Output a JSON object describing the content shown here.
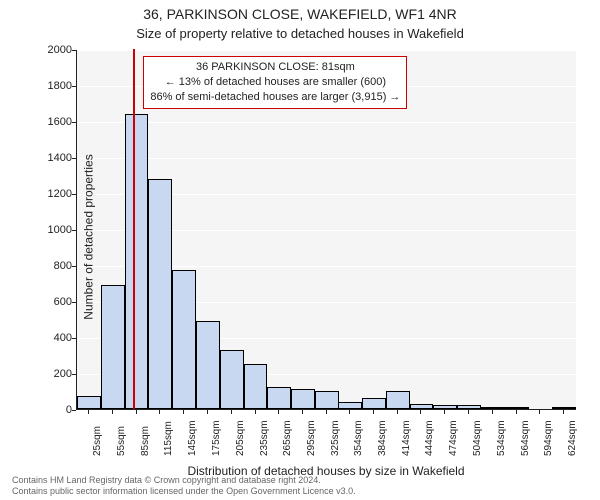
{
  "title": "36, PARKINSON CLOSE, WAKEFIELD, WF1 4NR",
  "subtitle": "Size of property relative to detached houses in Wakefield",
  "xlabel": "Distribution of detached houses by size in Wakefield",
  "ylabel": "Number of detached properties",
  "footer_line1": "Contains HM Land Registry data © Crown copyright and database right 2024.",
  "footer_line2": "Contains public sector information licensed under the Open Government Licence v3.0.",
  "chart": {
    "type": "histogram",
    "background_color": "#f5f5f5",
    "grid_color": "#ffffff",
    "bar_fill": "#c8d8f0",
    "bar_border": "#000000",
    "marker_color": "#cc0000",
    "marker_x": 81,
    "ylim": [
      0,
      2000
    ],
    "ytick_step": 200,
    "xlim": [
      10,
      640
    ],
    "x_categories": [
      "25sqm",
      "55sqm",
      "85sqm",
      "115sqm",
      "145sqm",
      "175sqm",
      "205sqm",
      "235sqm",
      "265sqm",
      "295sqm",
      "325sqm",
      "354sqm",
      "384sqm",
      "414sqm",
      "444sqm",
      "474sqm",
      "504sqm",
      "534sqm",
      "564sqm",
      "594sqm",
      "624sqm"
    ],
    "x_centers": [
      25,
      55,
      85,
      115,
      145,
      175,
      205,
      235,
      265,
      295,
      325,
      354,
      384,
      414,
      444,
      474,
      504,
      534,
      564,
      594,
      624
    ],
    "bar_width_data": 30,
    "values": [
      70,
      690,
      1640,
      1280,
      770,
      490,
      330,
      250,
      120,
      110,
      100,
      40,
      60,
      100,
      30,
      20,
      20,
      10,
      5,
      0,
      5
    ],
    "title_fontsize": 14,
    "subtitle_fontsize": 13,
    "label_fontsize": 12,
    "tick_fontsize": 11,
    "xtick_fontsize": 10,
    "annotation_fontsize": 11,
    "footer_fontsize": 9
  },
  "annotation": {
    "line1": "36 PARKINSON CLOSE: 81sqm",
    "line2": "← 13% of detached houses are smaller (600)",
    "line3": "86% of semi-detached houses are larger (3,915) →",
    "border_color": "#cc0000",
    "background": "#ffffff"
  }
}
